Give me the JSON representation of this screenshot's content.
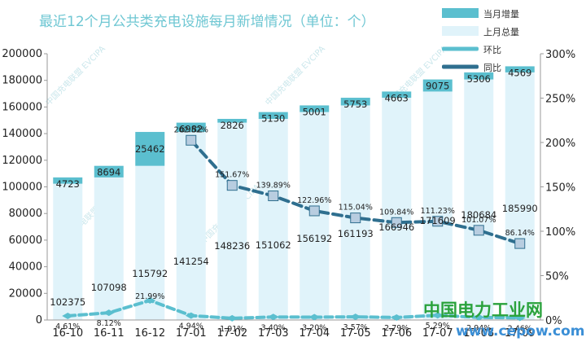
{
  "title": "最近12个月公共类充电设施每月新增情况（单位：个）",
  "colors": {
    "new_bar": "#5bbfcf",
    "total_bar": "#e0f3fa",
    "mom_line": "#5bbfcf",
    "yoy_line": "#2f6f8f",
    "yoy_marker_fill": "#b8cde0",
    "title": "#6fc7d3",
    "axis": "#9a9a9a"
  },
  "watermark": {
    "site": "www.cepow.com",
    "cn": "中国电力工业网",
    "stamp": "中国充电联盟 EVCIPA"
  },
  "chart_data": {
    "type": "bar",
    "categories": [
      "16-10",
      "16-11",
      "16-12",
      "17-01",
      "17-02",
      "17-03",
      "17-04",
      "17-05",
      "17-06",
      "17-07",
      "17-08",
      "17-09"
    ],
    "series": [
      {
        "name": "当月增量",
        "axis": "left",
        "kind": "stacked-bar-top",
        "values": [
          4723,
          8694,
          25462,
          6982,
          2826,
          5130,
          5001,
          5753,
          4663,
          9075,
          5306,
          4569
        ],
        "labels": [
          "4723",
          "8694",
          "25462",
          "6982",
          "2826",
          "5130",
          "5001",
          "5753",
          "4663",
          "9075",
          "5306",
          "4569"
        ]
      },
      {
        "name": "上月总量",
        "axis": "left",
        "kind": "bar",
        "values": [
          102375,
          107098,
          115792,
          141254,
          148236,
          151062,
          156192,
          161193,
          166946,
          171609,
          180684,
          185990
        ],
        "labels": [
          "102375",
          "107098",
          "115792",
          "141254",
          "148236",
          "151062",
          "156192",
          "161193",
          "166946",
          "171609",
          "180684",
          "185990"
        ]
      },
      {
        "name": "环比",
        "axis": "right",
        "kind": "line",
        "values": [
          4.61,
          8.12,
          21.99,
          4.94,
          1.91,
          3.4,
          3.2,
          3.57,
          2.79,
          5.29,
          2.94,
          2.46
        ],
        "labels": [
          "4.61%",
          "8.12%",
          "21.99%",
          "4.94%",
          "1.91%",
          "3.40%",
          "3.20%",
          "3.57%",
          "2.79%",
          "5.29%",
          "2.94%",
          "2.46%"
        ]
      },
      {
        "name": "同比",
        "axis": "right",
        "kind": "line",
        "values": [
          null,
          null,
          null,
          202.52,
          151.67,
          139.89,
          122.96,
          115.04,
          109.84,
          111.23,
          101.07,
          86.14
        ],
        "labels": [
          "",
          "",
          "",
          "202.52%",
          "151.67%",
          "139.89%",
          "122.96%",
          "115.04%",
          "109.84%",
          "111.23%",
          "101.07%",
          "86.14%"
        ]
      }
    ],
    "y_left": {
      "ticks": [
        "0",
        "20000",
        "40000",
        "60000",
        "80000",
        "100000",
        "120000",
        "140000",
        "160000",
        "180000",
        "200000"
      ],
      "ylim": [
        0,
        200000
      ]
    },
    "y_right": {
      "ticks": [
        "0%",
        "50%",
        "100%",
        "150%",
        "200%",
        "250%",
        "300%"
      ],
      "ylim": [
        0,
        300
      ]
    },
    "legend": {
      "placement": "top-right",
      "entries": [
        "当月增量",
        "上月总量",
        "环比",
        "同比"
      ]
    },
    "grid": false
  }
}
